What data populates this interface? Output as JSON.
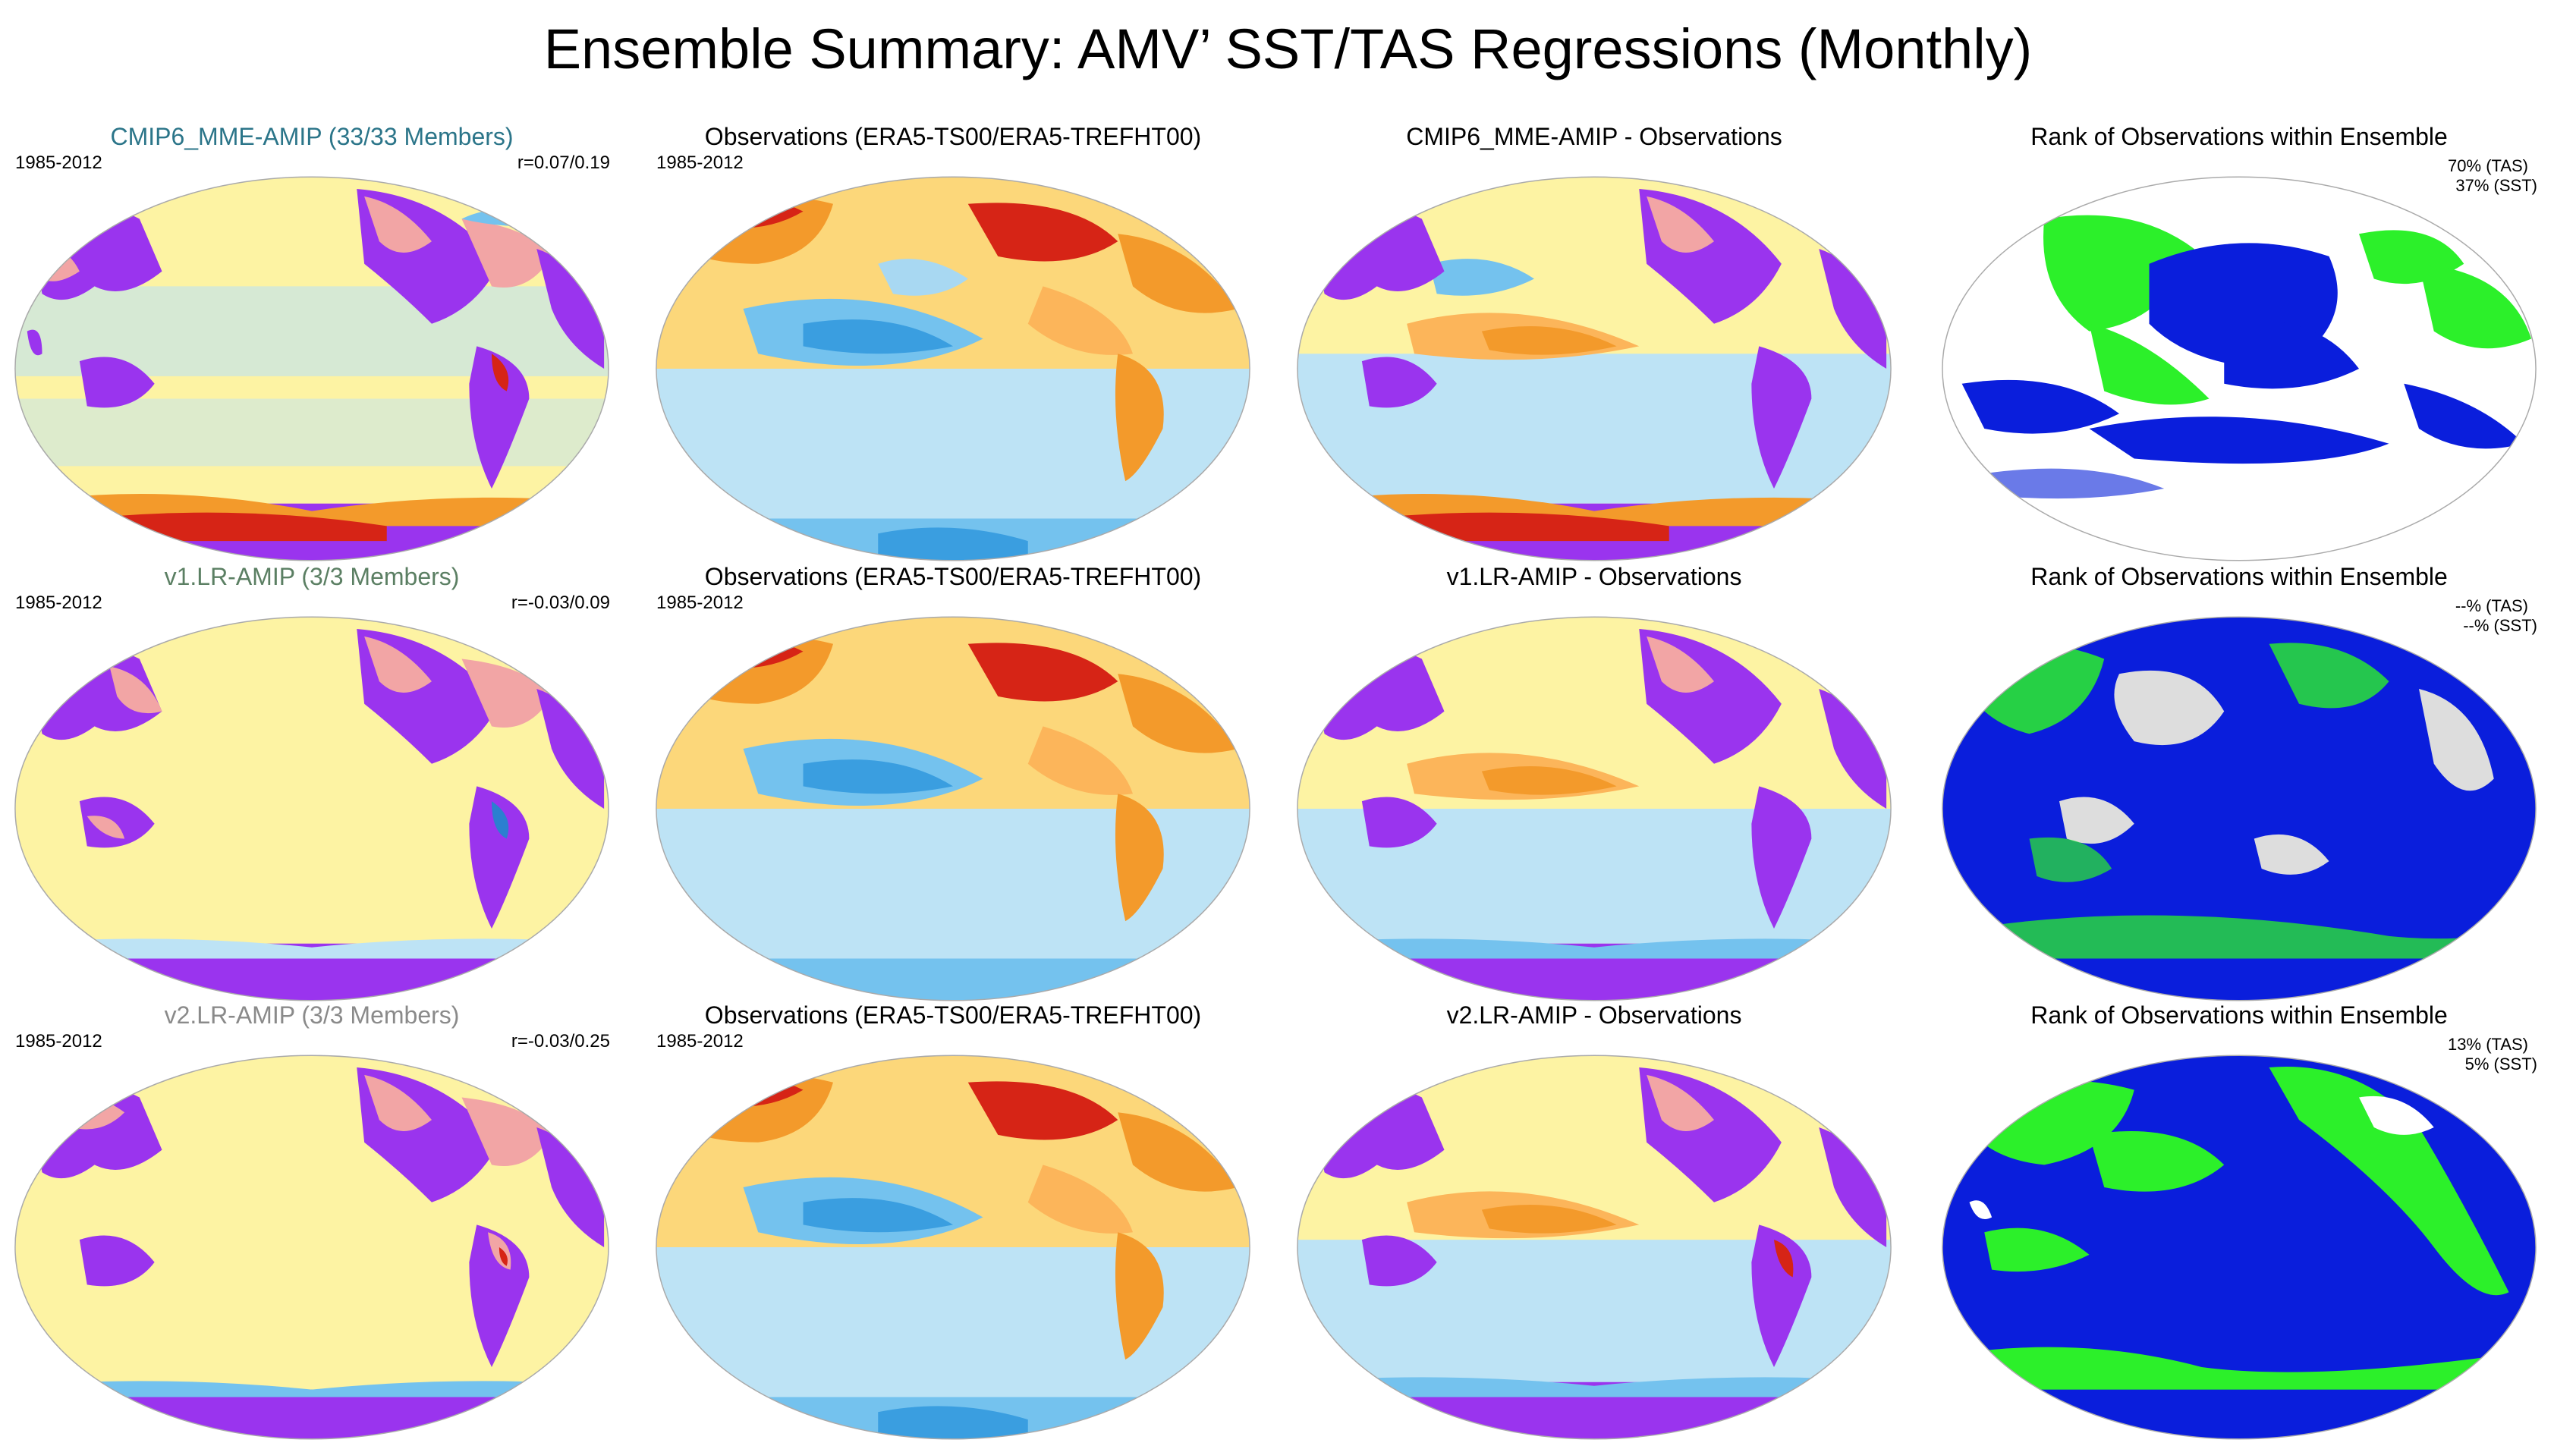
{
  "title": "Ensemble Summary: AMV’ SST/TAS Regressions (Monthly)",
  "colors": {
    "ensemble_title_1": "#2b7589",
    "ensemble_title_2": "#5b7f63",
    "ensemble_title_3": "#8a8a8a",
    "land_pink": "#f2a5a5",
    "land_purple": "#9a34ee",
    "ocean_yellow": "#fdf3a3",
    "warm": "#f39a2b",
    "hot": "#d62416",
    "cool": "#74c2ee",
    "rank_blue": "#0a1edc",
    "rank_green": "#2cf02a",
    "rank_gray": "#dddddd"
  },
  "rows": [
    {
      "ensemble": {
        "title": "CMIP6_MME-AMIP (33/33 Members)",
        "period": "1985-2012",
        "r": "r=0.07/0.19"
      },
      "observations": {
        "title": "Observations (ERA5-TS00/ERA5-TREFHT00)",
        "period": "1985-2012"
      },
      "difference": {
        "title": "CMIP6_MME-AMIP - Observations"
      },
      "rank": {
        "title": "Rank of Observations within Ensemble",
        "tas": "70% (TAS)",
        "sst": "37% (SST)"
      }
    },
    {
      "ensemble": {
        "title": "v1.LR-AMIP (3/3 Members)",
        "period": "1985-2012",
        "r": "r=-0.03/0.09"
      },
      "observations": {
        "title": "Observations (ERA5-TS00/ERA5-TREFHT00)",
        "period": "1985-2012"
      },
      "difference": {
        "title": "v1.LR-AMIP - Observations"
      },
      "rank": {
        "title": "Rank of Observations within Ensemble",
        "tas": "--% (TAS)",
        "sst": "--% (SST)"
      }
    },
    {
      "ensemble": {
        "title": "v2.LR-AMIP (3/3 Members)",
        "period": "1985-2012",
        "r": "r=-0.03/0.25"
      },
      "observations": {
        "title": "Observations (ERA5-TS00/ERA5-TREFHT00)",
        "period": "1985-2012"
      },
      "difference": {
        "title": "v2.LR-AMIP - Observations"
      },
      "rank": {
        "title": "Rank of Observations within Ensemble",
        "tas": "13% (TAS)",
        "sst": "5% (SST)"
      }
    }
  ],
  "chart_data": {
    "type": "heatmap",
    "title": "Ensemble Summary: AMV’ SST/TAS Regressions (Monthly)",
    "layout": "3 rows x 4 columns of global maps",
    "columns": [
      "ensemble mean regression",
      "observations",
      "ensemble - observations",
      "rank of observations"
    ],
    "period": "1985-2012",
    "correlations": [
      {
        "ensemble": "CMIP6_MME-AMIP",
        "members": "33/33",
        "r": "0.07/0.19"
      },
      {
        "ensemble": "v1.LR-AMIP",
        "members": "3/3",
        "r": "-0.03/0.09"
      },
      {
        "ensemble": "v2.LR-AMIP",
        "members": "3/3",
        "r": "-0.03/0.25"
      }
    ],
    "rank_percentages": [
      {
        "ensemble": "CMIP6_MME-AMIP",
        "tas": "70%",
        "sst": "37%"
      },
      {
        "ensemble": "v1.LR-AMIP",
        "tas": "--%",
        "sst": "--%"
      },
      {
        "ensemble": "v2.LR-AMIP",
        "tas": "13%",
        "sst": "5%"
      }
    ]
  }
}
